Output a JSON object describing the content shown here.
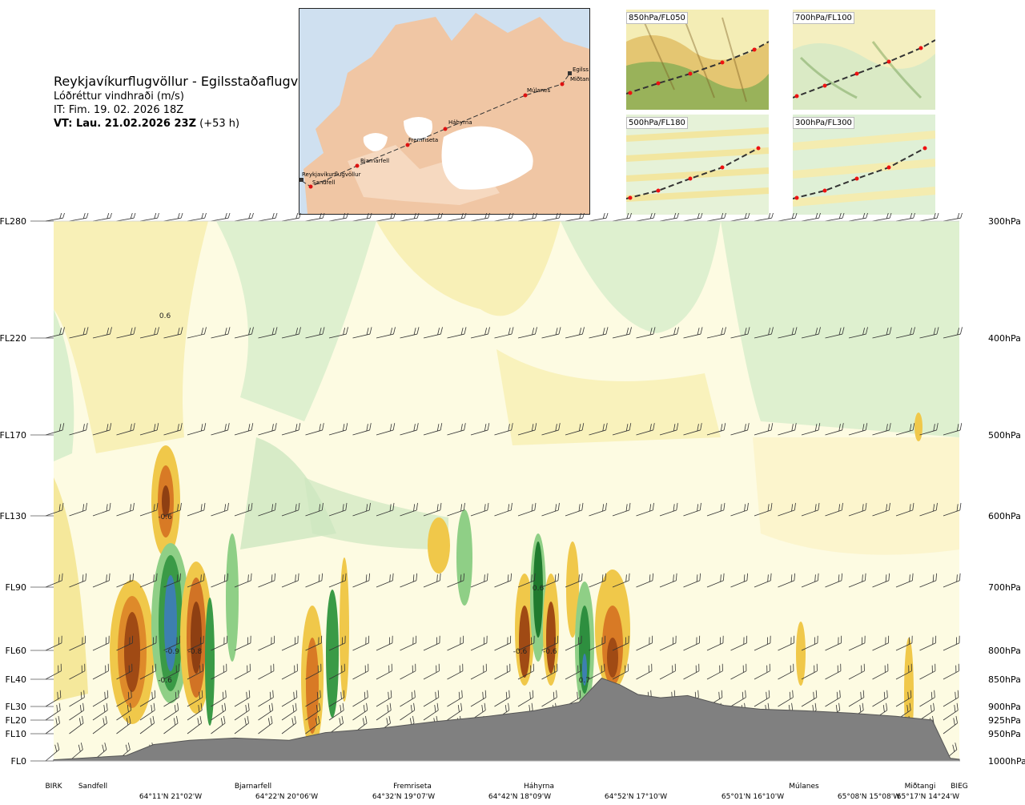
{
  "header": {
    "route": "Reykjavíkurflugvöllur - Egilsstaðaflugvöllur",
    "parameter": "Lóðréttur vindhraði (m/s)",
    "init_time": "IT: Fim. 19. 02. 2026 18Z",
    "valid_label": "VT: Lau. 21.02.2026 23Z",
    "valid_offset": "(+53 h)"
  },
  "map": {
    "points": [
      "Reykjavíkurflugvöllur",
      "Sandfell",
      "Bjarnarfell",
      "Fremriseta",
      "Háhyrna",
      "Múlanes",
      "Miðtangi",
      "Egilss"
    ]
  },
  "panels": [
    {
      "label": "850hPa/FL050"
    },
    {
      "label": "700hPa/FL100"
    },
    {
      "label": "500hPa/FL180"
    },
    {
      "label": "300hPa/FL300"
    }
  ],
  "chart_data": {
    "type": "heatmap",
    "title": "Lóðréttur vindhraði (m/s)",
    "left_axis_ticks": [
      "FL280",
      "FL220",
      "FL170",
      "FL130",
      "FL90",
      "FL60",
      "FL40",
      "FL30",
      "FL20",
      "FL10",
      "FL0"
    ],
    "right_axis_ticks": [
      "300hPa",
      "400hPa",
      "500hPa",
      "600hPa",
      "700hPa",
      "800hPa",
      "850hPa",
      "900hPa",
      "925hPa",
      "950hPa",
      "1000hPa"
    ],
    "pressure_levels_hpa": [
      300,
      400,
      500,
      600,
      700,
      800,
      850,
      900,
      925,
      950,
      1000
    ],
    "x_sites": [
      "BIRK",
      "Sandfell",
      "Bjarnarfell",
      "Fremriseta",
      "Háhyrna",
      "Múlanes",
      "Miðtangi",
      "BIEG"
    ],
    "x_coords": [
      "64°11'N 21°02'W",
      "64°22'N 20°06'W",
      "64°32'N 19°07'W",
      "64°42'N 18°09'W",
      "64°52'N 17°10'W",
      "65°01'N 16°10'W",
      "65°08'N 15°08'W",
      "65°17'N 14°24'W"
    ],
    "value_labels": [
      "-0.6",
      "0.6",
      "-0.9",
      "-0.8",
      "-0.6",
      "0.6",
      "-0.6",
      "-0.6",
      "0.7"
    ],
    "terrain_profile_hpa": [
      [
        0,
        998
      ],
      [
        0.08,
        990
      ],
      [
        0.11,
        970
      ],
      [
        0.15,
        962
      ],
      [
        0.2,
        958
      ],
      [
        0.26,
        962
      ],
      [
        0.3,
        948
      ],
      [
        0.36,
        940
      ],
      [
        0.42,
        928
      ],
      [
        0.48,
        918
      ],
      [
        0.53,
        908
      ],
      [
        0.58,
        892
      ],
      [
        0.605,
        848
      ],
      [
        0.625,
        860
      ],
      [
        0.645,
        878
      ],
      [
        0.67,
        884
      ],
      [
        0.7,
        880
      ],
      [
        0.74,
        898
      ],
      [
        0.78,
        905
      ],
      [
        0.83,
        908
      ],
      [
        0.88,
        912
      ],
      [
        0.93,
        918
      ],
      [
        0.97,
        925
      ],
      [
        0.99,
        995
      ],
      [
        1.0,
        997
      ]
    ]
  }
}
